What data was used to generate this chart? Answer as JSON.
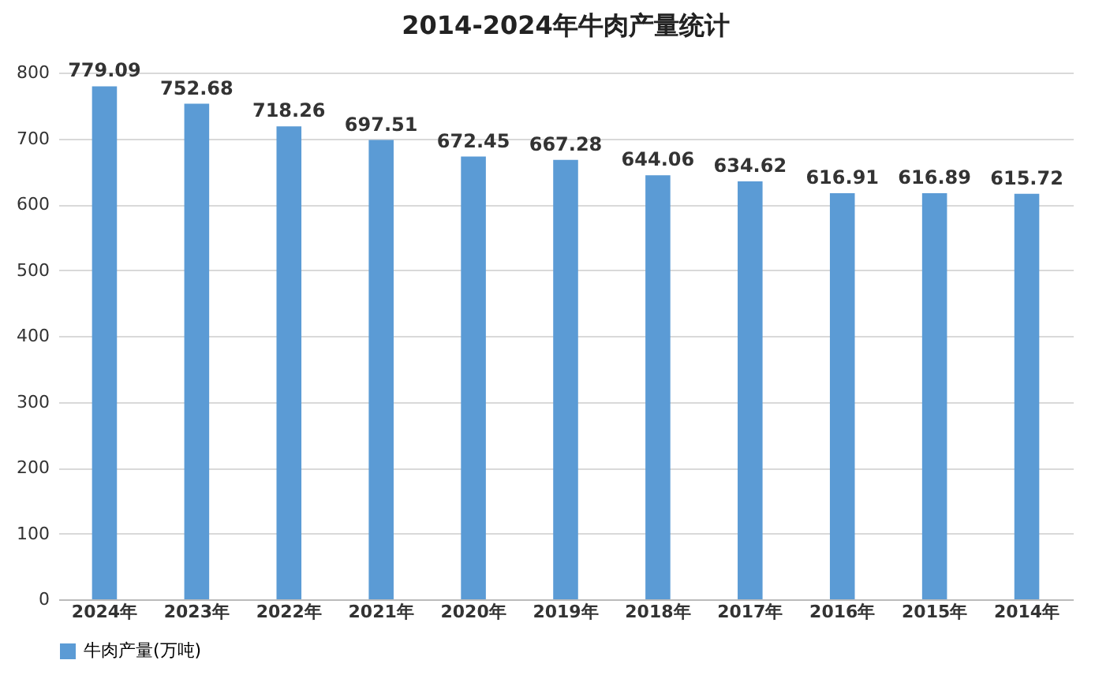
{
  "chart_data": {
    "type": "bar",
    "title": "2014-2024年牛肉产量统计",
    "categories": [
      "2024年",
      "2023年",
      "2022年",
      "2021年",
      "2020年",
      "2019年",
      "2018年",
      "2017年",
      "2016年",
      "2015年",
      "2014年"
    ],
    "series": [
      {
        "name": "牛肉产量(万吨)",
        "color": "#5b9bd5",
        "values": [
          779.09,
          752.68,
          718.26,
          697.51,
          672.45,
          667.28,
          644.06,
          634.62,
          616.91,
          616.89,
          615.72
        ]
      }
    ],
    "ylim": [
      0,
      800
    ],
    "yticks": [
      0,
      100,
      200,
      300,
      400,
      500,
      600,
      700,
      800
    ],
    "grid": "y",
    "legend": "bottom",
    "data_labels": true
  }
}
